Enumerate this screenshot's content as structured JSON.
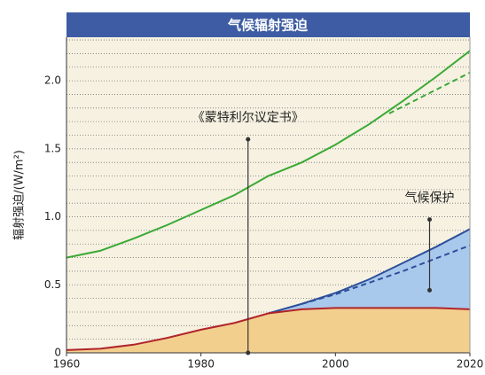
{
  "chart_data": {
    "type": "line",
    "title": "气候辐射强迫",
    "ylabel": "辐射强迫/(W/m²)",
    "xlim": [
      1960,
      2020
    ],
    "xticks": [
      1960,
      1980,
      2000,
      2020
    ],
    "ylim": [
      0,
      2.32
    ],
    "yticks": [
      0,
      0.5,
      {
        "value": 1,
        "label": "1.0"
      },
      1.5,
      {
        "value": 2,
        "label": "2.0"
      }
    ],
    "grid_lines": [
      0.1,
      0.2,
      0.3,
      0.4,
      0.6,
      0.7,
      0.8,
      0.9,
      1.1,
      1.2,
      1.3,
      1.4,
      1.6,
      1.7,
      1.8,
      1.9,
      2.1,
      2.2,
      2.3
    ],
    "series": [
      {
        "color": "#3aa935",
        "dash": false,
        "x": [
          1960,
          1965,
          1970,
          1975,
          1980,
          1985,
          1990,
          1995,
          2000,
          2005,
          2010,
          2015,
          2020
        ],
        "values": [
          0.7,
          0.75,
          0.84,
          0.94,
          1.05,
          1.16,
          1.3,
          1.4,
          1.53,
          1.68,
          1.85,
          2.03,
          2.22
        ]
      },
      {
        "color": "#3aa935",
        "dash": true,
        "x": [
          2008,
          2012,
          2016,
          2020
        ],
        "values": [
          1.76,
          1.86,
          1.96,
          2.06
        ]
      },
      {
        "color": "#2d4f9a",
        "dash": false,
        "fill": "#a9c9ec",
        "x": [
          1990,
          1995,
          2000,
          2005,
          2010,
          2015,
          2020
        ],
        "values": [
          0.29,
          0.36,
          0.44,
          0.54,
          0.66,
          0.78,
          0.91
        ]
      },
      {
        "color": "#2d4f9a",
        "dash": true,
        "x": [
          1995,
          2000,
          2010,
          2020
        ],
        "values": [
          0.36,
          0.43,
          0.6,
          0.79
        ]
      },
      {
        "color": "#b0242a",
        "dash": false,
        "fill": "#f3cf8e",
        "x": [
          1960,
          1965,
          1970,
          1975,
          1980,
          1985,
          1990,
          1995,
          2000,
          2005,
          2010,
          2015,
          2020
        ],
        "values": [
          0.02,
          0.03,
          0.06,
          0.11,
          0.17,
          0.22,
          0.29,
          0.32,
          0.33,
          0.33,
          0.33,
          0.33,
          0.32
        ]
      }
    ],
    "annotations": [
      {
        "text": "《蒙特利尔议定书》",
        "x": 1987,
        "y_top": 1.57,
        "y_bottom": 0
      },
      {
        "text": "气候保护",
        "x": 2014,
        "y_top": 0.98,
        "y_bottom": 0.46
      }
    ]
  }
}
